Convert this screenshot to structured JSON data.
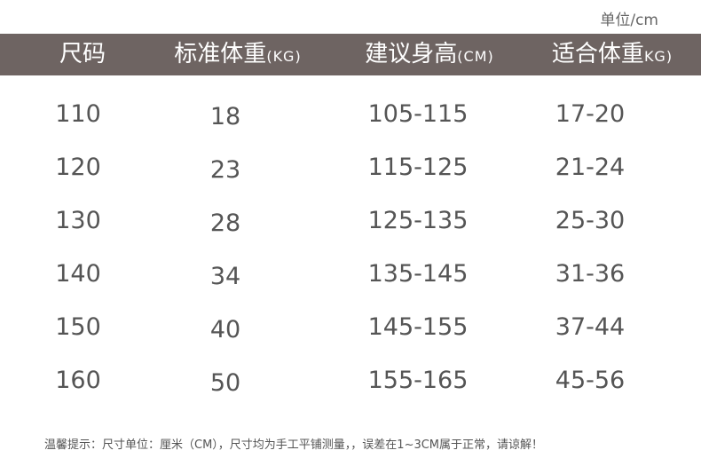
{
  "unit_label": "单位/cm",
  "headers": [
    {
      "main": "尺码",
      "sub": ""
    },
    {
      "main": "标准体重",
      "sub": "(KG)"
    },
    {
      "main": "建议身高",
      "sub": "(CM)"
    },
    {
      "main": "适合体重",
      "sub": "KG)"
    }
  ],
  "rows": [
    [
      "110",
      "18",
      "105-115",
      "17-20"
    ],
    [
      "120",
      "23",
      "115-125",
      "21-24"
    ],
    [
      "130",
      "28",
      "125-135",
      "25-30"
    ],
    [
      "140",
      "34",
      "135-145",
      "31-36"
    ],
    [
      "150",
      "40",
      "145-155",
      "37-44"
    ],
    [
      "160",
      "50",
      "155-165",
      "45-56"
    ]
  ],
  "note": "温馨提示：尺寸单位：厘米（CM），尺寸均为手工平铺测量，，误差在1~3CM属于正常，请谅解！",
  "colors": {
    "header_bg": "#6e6462",
    "text": "#555555"
  }
}
